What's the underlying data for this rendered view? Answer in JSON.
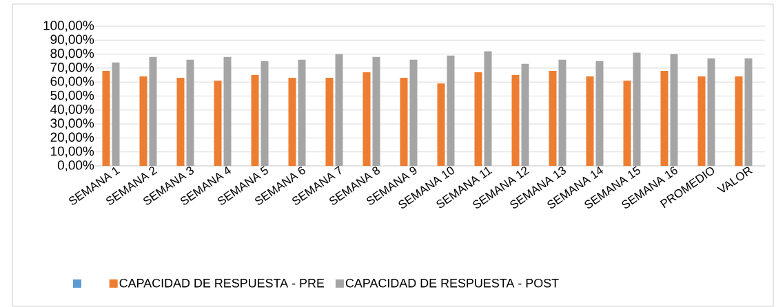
{
  "chart_data": {
    "type": "bar",
    "categories": [
      "SEMANA 1",
      "SEMANA 2",
      "SEMANA 3",
      "SEMANA 4",
      "SEMANA 5",
      "SEMANA 6",
      "SEMANA 7",
      "SEMANA 8",
      "SEMANA 9",
      "SEMANA 10",
      "SEMANA 11",
      "SEMANA 12",
      "SEMANA 13",
      "SEMANA 14",
      "SEMANA 15",
      "SEMANA 16",
      "PROMEDIO",
      "VALOR"
    ],
    "series": [
      {
        "name": "CAPACIDAD DE RESPUESTA - PRE",
        "color": "#ed7d31",
        "values": [
          68,
          64,
          63,
          61,
          65,
          63,
          63,
          67,
          63,
          59,
          67,
          65,
          68,
          64,
          61,
          68,
          64,
          64
        ]
      },
      {
        "name": "CAPACIDAD DE RESPUESTA - POST",
        "color": "#a5a5a5",
        "values": [
          74,
          78,
          76,
          78,
          75,
          76,
          80,
          78,
          76,
          79,
          82,
          73,
          76,
          75,
          81,
          80,
          77,
          77
        ]
      }
    ],
    "ylim": [
      0,
      100
    ],
    "yticks": [
      {
        "value": 0,
        "label": "0,00%"
      },
      {
        "value": 10,
        "label": "10,00%"
      },
      {
        "value": 20,
        "label": "20,00%"
      },
      {
        "value": 30,
        "label": "30,00%"
      },
      {
        "value": 40,
        "label": "40,00%"
      },
      {
        "value": 50,
        "label": "50,00%"
      },
      {
        "value": 60,
        "label": "60,00%"
      },
      {
        "value": 70,
        "label": "70,00%"
      },
      {
        "value": 80,
        "label": "80,00%"
      },
      {
        "value": 90,
        "label": "90,00%"
      },
      {
        "value": 100,
        "label": "100,00%"
      }
    ],
    "grid": "y",
    "legend": "bottom"
  }
}
